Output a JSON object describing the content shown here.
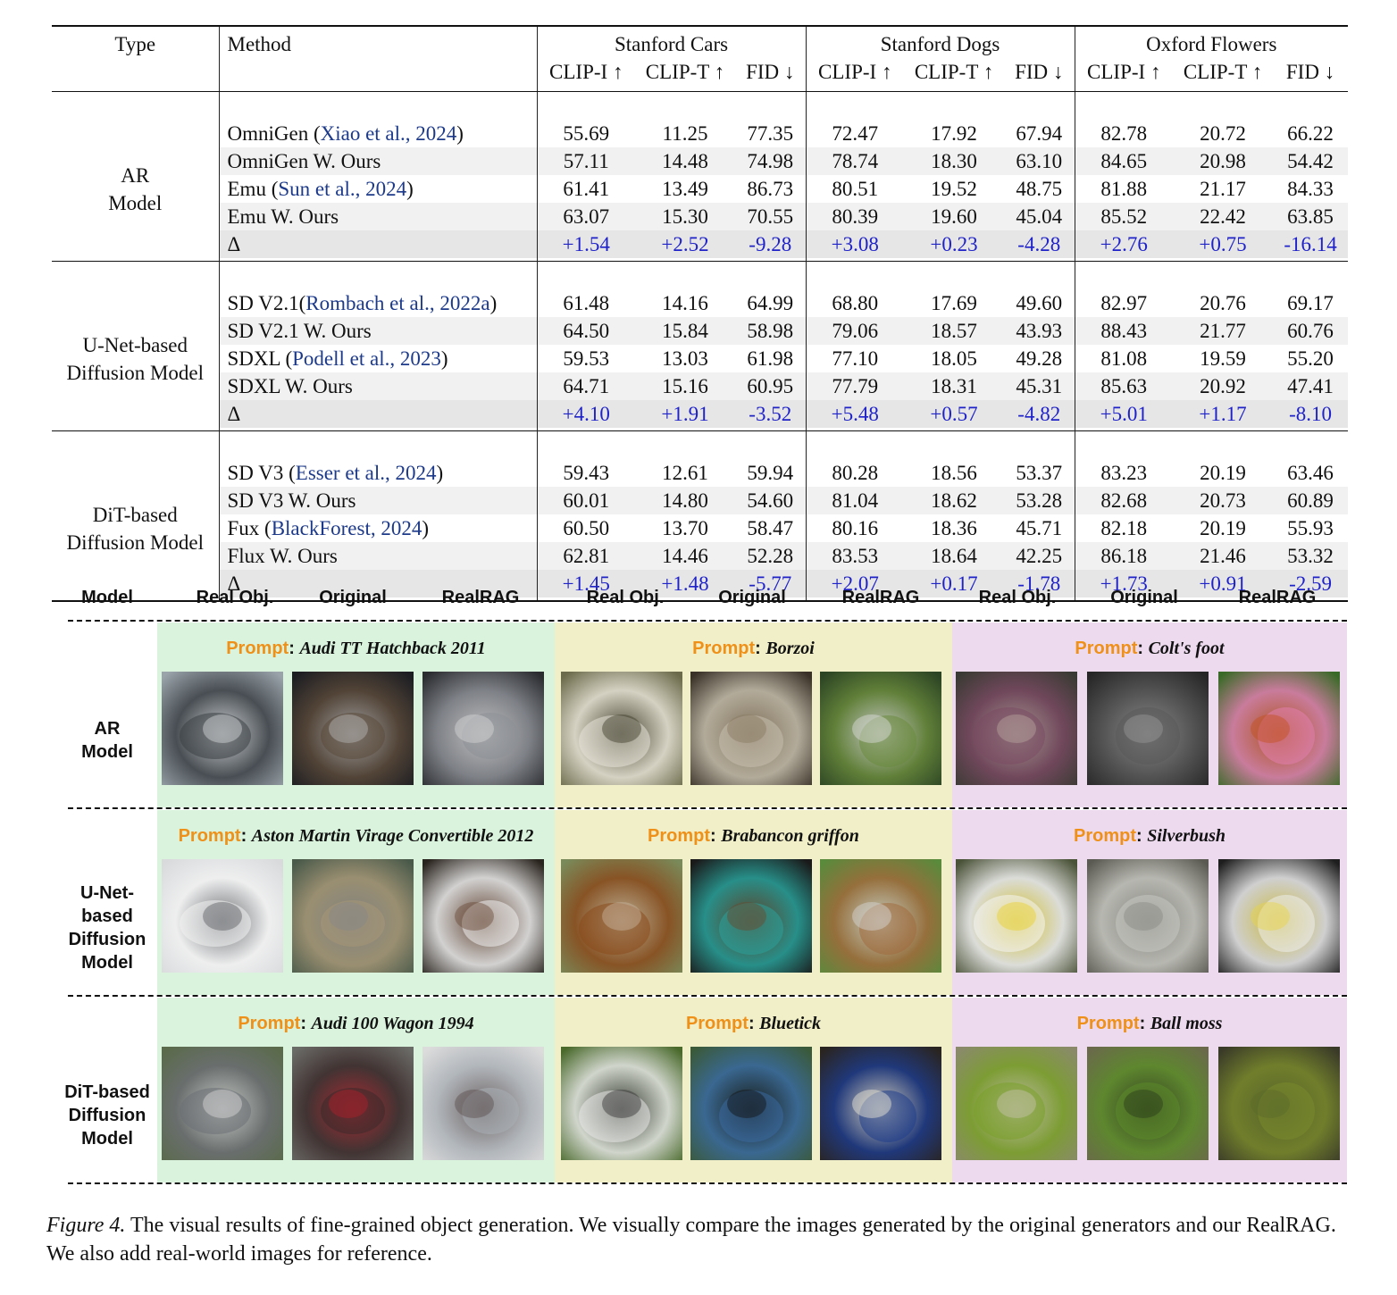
{
  "table": {
    "headers": {
      "type": "Type",
      "method": "Method",
      "datasets": [
        "Stanford Cars",
        "Stanford Dogs",
        "Oxford Flowers"
      ],
      "metrics": [
        "CLIP-I ↑",
        "CLIP-T ↑",
        "FID ↓"
      ]
    },
    "groups": [
      {
        "type_lines": [
          "AR",
          "Model"
        ],
        "rows": [
          {
            "method": "OmniGen (",
            "cite": "Xiao et al., 2024",
            "suffix": ")",
            "values": [
              "55.69",
              "11.25",
              "77.35",
              "72.47",
              "17.92",
              "67.94",
              "82.78",
              "20.72",
              "66.22"
            ]
          },
          {
            "method": "OmniGen W. Ours",
            "cite": "",
            "suffix": "",
            "values": [
              "57.11",
              "14.48",
              "74.98",
              "78.74",
              "18.30",
              "63.10",
              "84.65",
              "20.98",
              "54.42"
            ]
          },
          {
            "method": "Emu (",
            "cite": "Sun et al., 2024",
            "suffix": ")",
            "values": [
              "61.41",
              "13.49",
              "86.73",
              "80.51",
              "19.52",
              "48.75",
              "81.88",
              "21.17",
              "84.33"
            ]
          },
          {
            "method": "Emu W. Ours",
            "cite": "",
            "suffix": "",
            "values": [
              "63.07",
              "15.30",
              "70.55",
              "80.39",
              "19.60",
              "45.04",
              "85.52",
              "22.42",
              "63.85"
            ]
          },
          {
            "method": "Δ",
            "cite": "",
            "suffix": "",
            "values": [
              "+1.54",
              "+2.52",
              "-9.28",
              "+3.08",
              "+0.23",
              "-4.28",
              "+2.76",
              "+0.75",
              "-16.14"
            ]
          }
        ]
      },
      {
        "type_lines": [
          "U-Net-based",
          "Diffusion Model"
        ],
        "rows": [
          {
            "method": "SD V2.1(",
            "cite": "Rombach et al., 2022a",
            "suffix": ")",
            "values": [
              "61.48",
              "14.16",
              "64.99",
              "68.80",
              "17.69",
              "49.60",
              "82.97",
              "20.76",
              "69.17"
            ]
          },
          {
            "method": "SD V2.1 W. Ours",
            "cite": "",
            "suffix": "",
            "values": [
              "64.50",
              "15.84",
              "58.98",
              "79.06",
              "18.57",
              "43.93",
              "88.43",
              "21.77",
              "60.76"
            ]
          },
          {
            "method": "SDXL (",
            "cite": "Podell et al., 2023",
            "suffix": ")",
            "values": [
              "59.53",
              "13.03",
              "61.98",
              "77.10",
              "18.05",
              "49.28",
              "81.08",
              "19.59",
              "55.20"
            ]
          },
          {
            "method": "SDXL W. Ours",
            "cite": "",
            "suffix": "",
            "values": [
              "64.71",
              "15.16",
              "60.95",
              "77.79",
              "18.31",
              "45.31",
              "85.63",
              "20.92",
              "47.41"
            ]
          },
          {
            "method": "Δ",
            "cite": "",
            "suffix": "",
            "values": [
              "+4.10",
              "+1.91",
              "-3.52",
              "+5.48",
              "+0.57",
              "-4.82",
              "+5.01",
              "+1.17",
              "-8.10"
            ]
          }
        ]
      },
      {
        "type_lines": [
          "DiT-based",
          "Diffusion Model"
        ],
        "rows": [
          {
            "method": "SD V3 (",
            "cite": "Esser et al., 2024",
            "suffix": ")",
            "values": [
              "59.43",
              "12.61",
              "59.94",
              "80.28",
              "18.56",
              "53.37",
              "83.23",
              "20.19",
              "63.46"
            ]
          },
          {
            "method": "SD V3 W. Ours",
            "cite": "",
            "suffix": "",
            "values": [
              "60.01",
              "14.80",
              "54.60",
              "81.04",
              "18.62",
              "53.28",
              "82.68",
              "20.73",
              "60.89"
            ]
          },
          {
            "method": "Fux (",
            "cite": "BlackForest, 2024",
            "suffix": ")",
            "values": [
              "60.50",
              "13.70",
              "58.47",
              "80.16",
              "18.36",
              "45.71",
              "82.18",
              "20.19",
              "55.93"
            ]
          },
          {
            "method": "Flux W. Ours",
            "cite": "",
            "suffix": "",
            "values": [
              "62.81",
              "14.46",
              "52.28",
              "83.53",
              "18.64",
              "42.25",
              "86.18",
              "21.46",
              "53.32"
            ]
          },
          {
            "method": "Δ",
            "cite": "",
            "suffix": "",
            "values": [
              "+1.45",
              "+1.48",
              "-5.77",
              "+2.07",
              "+0.17",
              "-1.78",
              "+1.73",
              "+0.91",
              "-2.59"
            ]
          }
        ]
      }
    ]
  },
  "figure": {
    "column_headers": [
      "Model",
      "Real Obj.",
      "Original",
      "RealRAG",
      "Real Obj.",
      "Original",
      "RealRAG",
      "Real Obj.",
      "Original",
      "RealRAG"
    ],
    "prompt_key": "Prompt",
    "panel_colors": [
      "#d9f3dc",
      "#f1efc7",
      "#eedaef"
    ],
    "rows": [
      {
        "label_lines": [
          "AR",
          "Model"
        ],
        "prompts": [
          "Audi TT Hatchback 2011",
          "Borzoi",
          "Colt's foot"
        ]
      },
      {
        "label_lines": [
          "U-Net-",
          "based",
          "Diffusion",
          "Model"
        ],
        "prompts": [
          "Aston Martin Virage Convertible 2012",
          "Brabancon griffon",
          "Silverbush"
        ]
      },
      {
        "label_lines": [
          "DiT-based",
          "Diffusion",
          "Model"
        ],
        "prompts": [
          "Audi 100 Wagon 1994",
          "Bluetick",
          "Ball moss"
        ]
      }
    ],
    "thumbnail_palettes": [
      [
        [
          "#9aa3aa",
          "#3a3f44",
          "#d7d9db"
        ],
        [
          "#1c1d22",
          "#5b4a3a",
          "#b8b8b8"
        ],
        [
          "#2a2c30",
          "#8d9096",
          "#d8d8d8"
        ],
        [
          "#6b6a4a",
          "#e8e4d8",
          "#3e3b2a"
        ],
        [
          "#3a3228",
          "#c8c0ae",
          "#8a7b62"
        ],
        [
          "#2c4424",
          "#6a8a3c",
          "#ddd"
        ],
        [
          "#3a3a34",
          "#7a4a62",
          "#b7a6a0"
        ],
        [
          "#262626",
          "#5a5a5a",
          "#9a9a9a"
        ],
        [
          "#3a6a28",
          "#e27fb0",
          "#c4501c"
        ]
      ],
      [
        [
          "#d8dadc",
          "#f2f2f2",
          "#5a5e62"
        ],
        [
          "#4a5a4a",
          "#a89878",
          "#888"
        ],
        [
          "#2a241e",
          "#f0f0f0",
          "#6a4a38"
        ],
        [
          "#7a8a5a",
          "#8a4a1c",
          "#c8b6a0"
        ],
        [
          "#1a1a1a",
          "#2aa39c",
          "#6a4a2c"
        ],
        [
          "#5a8a3c",
          "#a06a3c",
          "#d8d8d8"
        ],
        [
          "#4a5238",
          "#f5f5f5",
          "#e8d02a"
        ],
        [
          "#5a5a52",
          "#c8c8c2",
          "#8a8a84"
        ],
        [
          "#1e1e1e",
          "#efefef",
          "#e8d44a"
        ]
      ],
      [
        [
          "#5a6a4a",
          "#6c6f74",
          "#d9d9d9"
        ],
        [
          "#6a6a66",
          "#3a2a2a",
          "#b0202a"
        ],
        [
          "#dcdcdc",
          "#aab0b6",
          "#5a4e4e"
        ],
        [
          "#4a6a2c",
          "#e8e8e8",
          "#333"
        ],
        [
          "#3a5a3a",
          "#3a6aa0",
          "#111"
        ],
        [
          "#2a2420",
          "#1e3c8a",
          "#f0ead8"
        ],
        [
          "#8a8a6a",
          "#7aa02a",
          "#c8c4b0"
        ],
        [
          "#6a6a4a",
          "#5c8c2a",
          "#2a3a1a"
        ],
        [
          "#3a3a28",
          "#7a8a2c",
          "#5a6a2a"
        ]
      ]
    ]
  },
  "caption": {
    "label": "Figure 4.",
    "text": " The visual results of fine-grained object generation. We visually compare the images generated by the original generators and our RealRAG. We also add real-world images for reference."
  }
}
